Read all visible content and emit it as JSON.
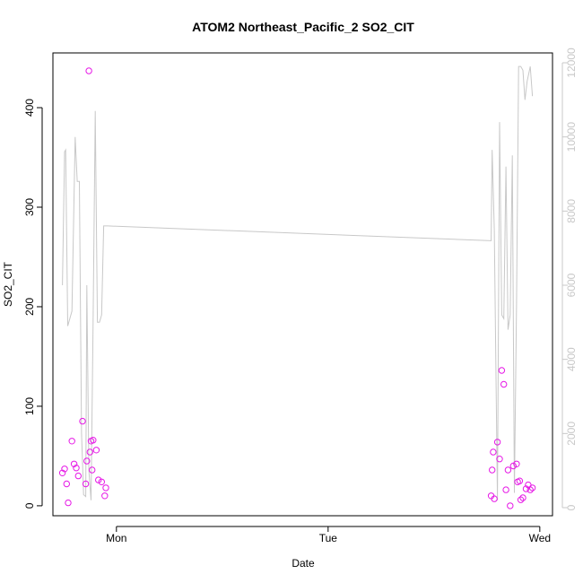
{
  "chart_data": {
    "type": "scatter",
    "title": "ATOM2 Northeast_Pacific_2 SO2_CIT",
    "xlabel": "Date",
    "ylabel": "SO2_CIT",
    "x_ticks": [
      "Mon",
      "Tue",
      "Wed"
    ],
    "xlim_days": [
      -0.3,
      2.06
    ],
    "ylim": [
      -10,
      455
    ],
    "y_ticks": [
      0,
      100,
      200,
      300,
      400
    ],
    "y2lim": [
      0,
      12000
    ],
    "y2_ticks": [
      0,
      2000,
      4000,
      6000,
      8000,
      10000,
      12000
    ],
    "grid": false,
    "legend": "none",
    "colors": {
      "points": "#e619e6",
      "line": "#c8c8c8"
    },
    "series": [
      {
        "type": "scatter",
        "axis": "left",
        "x": [
          -0.255,
          -0.245,
          -0.235,
          -0.228,
          -0.21,
          -0.2,
          -0.19,
          -0.18,
          -0.16,
          -0.145,
          -0.14,
          -0.13,
          -0.125,
          -0.12,
          -0.115,
          -0.11,
          -0.095,
          -0.085,
          -0.07,
          -0.055,
          -0.05,
          1.77,
          1.775,
          1.78,
          1.785,
          1.8,
          1.81,
          1.82,
          1.83,
          1.84,
          1.85,
          1.86,
          1.875,
          1.89,
          1.895,
          1.905,
          1.91,
          1.92,
          1.935,
          1.945,
          1.955,
          1.965
        ],
        "y": [
          33,
          37,
          22,
          3,
          65,
          42,
          38,
          30,
          85,
          22,
          45,
          437,
          54,
          65,
          36,
          66,
          56,
          26,
          24,
          10,
          18,
          10,
          36,
          54,
          7,
          64,
          47,
          136,
          122,
          16,
          36,
          0,
          40,
          42,
          24,
          25,
          6,
          8,
          17,
          21,
          16,
          18
        ]
      },
      {
        "type": "line",
        "axis": "right",
        "x": [
          -0.255,
          -0.245,
          -0.24,
          -0.23,
          -0.21,
          -0.195,
          -0.185,
          -0.175,
          -0.165,
          -0.155,
          -0.145,
          -0.14,
          -0.13,
          -0.12,
          -0.11,
          -0.1,
          -0.09,
          -0.08,
          -0.07,
          -0.06,
          -0.04,
          1.77,
          1.775,
          1.785,
          1.8,
          1.81,
          1.82,
          1.83,
          1.84,
          1.85,
          1.86,
          1.87,
          1.88,
          1.89,
          1.9,
          1.91,
          1.92,
          1.93,
          1.94,
          1.955,
          1.965
        ],
        "y": [
          6000,
          9600,
          9650,
          4900,
          5300,
          10000,
          8800,
          8800,
          2000,
          350,
          300,
          6000,
          1000,
          200,
          5000,
          10700,
          5000,
          5000,
          5200,
          7600,
          7600,
          7200,
          9650,
          7500,
          200,
          10400,
          5200,
          5100,
          9200,
          4800,
          5200,
          9500,
          400,
          5500,
          11900,
          11900,
          11800,
          11000,
          11500,
          11900,
          11100
        ]
      }
    ]
  }
}
